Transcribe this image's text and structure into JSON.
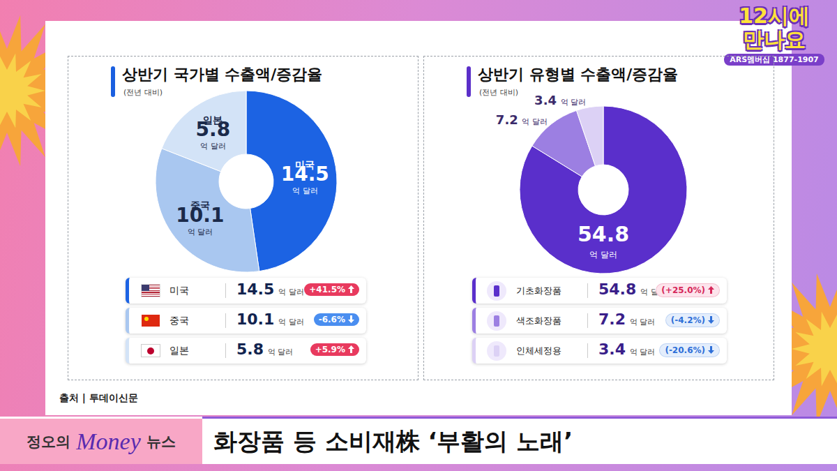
{
  "header": {
    "logo": "12시에 만나요",
    "phone": "ARS멤버십 1877-1907"
  },
  "chart_data": [
    {
      "type": "pie",
      "title": "상반기 국가별 수출액/증감율",
      "subtitle": "(전년 대비)",
      "unit": "억 달러",
      "categories": [
        "미국",
        "중국",
        "일본"
      ],
      "slice_labels": [
        "미국",
        "중국",
        "일본"
      ],
      "values": [
        14.5,
        10.1,
        5.8
      ],
      "colors": [
        "#1c63e3",
        "#a9c7f0",
        "#d3e3f7"
      ],
      "data_labels": true,
      "change_values": [
        41.5,
        -6.6,
        5.9
      ],
      "change_labels": [
        "+41.5%",
        "-6.6%",
        "+5.9%"
      ]
    },
    {
      "type": "pie",
      "title": "상반기 유형별 수출액/증감율",
      "subtitle": "(전년 대비)",
      "unit": "억 달러",
      "categories": [
        "기초화장품",
        "색조화장품",
        "인체세정용"
      ],
      "values": [
        54.8,
        7.2,
        3.4
      ],
      "colors": [
        "#5a2fcb",
        "#9c7fe2",
        "#dcd1f5"
      ],
      "data_labels": true,
      "change_values": [
        25.0,
        -4.2,
        -20.6
      ],
      "change_labels": [
        "(+25.0%)",
        "(-4.2%)",
        "(-20.6%)"
      ]
    }
  ],
  "source": "출처 | 투데이신문",
  "banner": {
    "segment": [
      "정오의",
      "Money",
      "뉴스"
    ],
    "headline": "화장품 등 소비재株 ‘부활의 노래’"
  }
}
